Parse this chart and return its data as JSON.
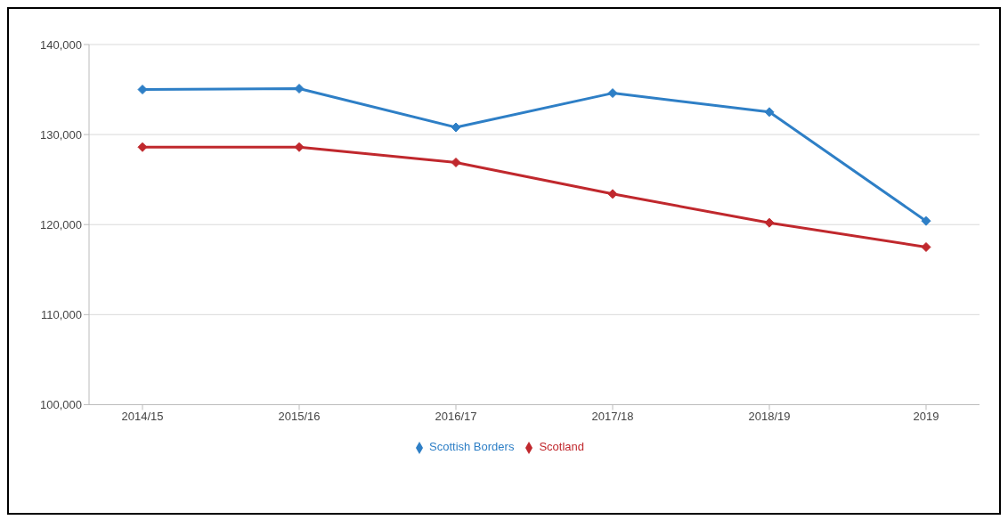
{
  "chart_data": {
    "type": "line",
    "categories": [
      "2014/15",
      "2015/16",
      "2016/17",
      "2017/18",
      "2018/19",
      "2019"
    ],
    "series": [
      {
        "name": "Scottish Borders",
        "color": "#2e7fc6",
        "values": [
          135000,
          135100,
          130800,
          134600,
          132500,
          120400
        ]
      },
      {
        "name": "Scotland",
        "color": "#c0282d",
        "values": [
          128600,
          128600,
          126900,
          123400,
          120200,
          117500
        ]
      }
    ],
    "ylim": [
      100000,
      140000
    ],
    "yticks": [
      {
        "value": 100000,
        "label": "100,000"
      },
      {
        "value": 110000,
        "label": "110,000"
      },
      {
        "value": 120000,
        "label": "120,000"
      },
      {
        "value": 130000,
        "label": "130,000"
      },
      {
        "value": 140000,
        "label": "140,000"
      }
    ],
    "grid": "y",
    "legend": "bottom",
    "marker": "diamond",
    "line_style": "solid"
  }
}
